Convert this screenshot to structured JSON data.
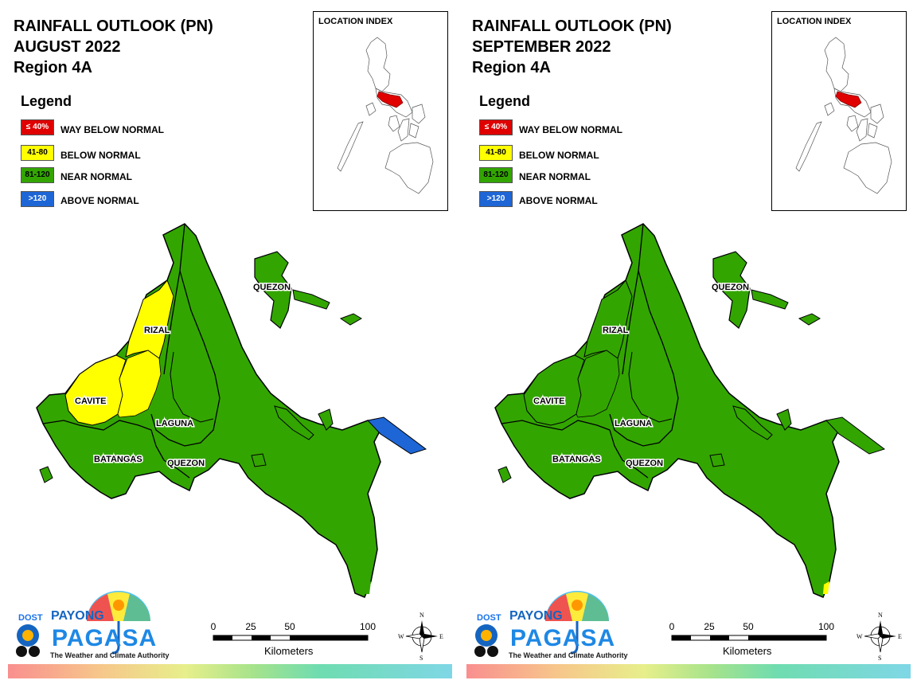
{
  "colors": {
    "way_below": "#e00000",
    "below": "#ffff00",
    "near": "#33a500",
    "above": "#1e66d6"
  },
  "panels": [
    {
      "title_lines": [
        "RAINFALL OUTLOOK (PN)",
        "AUGUST 2022",
        "Region 4A"
      ],
      "legend": {
        "heading": "Legend",
        "items": [
          {
            "swatch": "≤ 40%",
            "label": "WAY BELOW NORMAL",
            "color": "#e00000",
            "text_color": "#ffffff"
          },
          {
            "swatch": "41-80",
            "label": "BELOW NORMAL",
            "color": "#ffff00",
            "text_color": "#000000"
          },
          {
            "swatch": "81-120",
            "label": "NEAR NORMAL",
            "color": "#33a500",
            "text_color": "#000000"
          },
          {
            "swatch": ">120",
            "label": "ABOVE NORMAL",
            "color": "#1e66d6",
            "text_color": "#ffffff"
          }
        ]
      },
      "location_index": "LOCATION INDEX",
      "provinces": {
        "quezon_north": "QUEZON",
        "rizal": "RIZAL",
        "cavite": "CAVITE",
        "laguna": "LAGUNA",
        "batangas": "BATANGAS",
        "quezon_south": "QUEZON"
      },
      "outlook": {
        "rizal": "below",
        "cavite": "below",
        "laguna_west": "below",
        "quezon_tip": "above",
        "default": "near"
      },
      "scale": {
        "ticks": [
          "0",
          "25",
          "50",
          "100"
        ],
        "unit": "Kilometers"
      },
      "logo": {
        "dost": "DOST",
        "payong": "PAYONG",
        "pagasa": "PAGASA",
        "tagline": "The Weather and Climate Authority"
      },
      "compass": {
        "n": "N",
        "s": "S",
        "e": "E",
        "w": "W"
      }
    },
    {
      "title_lines": [
        "RAINFALL OUTLOOK (PN)",
        "SEPTEMBER 2022",
        "Region 4A"
      ],
      "legend": {
        "heading": "Legend",
        "items": [
          {
            "swatch": "≤ 40%",
            "label": "WAY BELOW NORMAL",
            "color": "#e00000",
            "text_color": "#ffffff"
          },
          {
            "swatch": "41-80",
            "label": "BELOW NORMAL",
            "color": "#ffff00",
            "text_color": "#000000"
          },
          {
            "swatch": "81-120",
            "label": "NEAR NORMAL",
            "color": "#33a500",
            "text_color": "#000000"
          },
          {
            "swatch": ">120",
            "label": "ABOVE NORMAL",
            "color": "#1e66d6",
            "text_color": "#ffffff"
          }
        ]
      },
      "location_index": "LOCATION INDEX",
      "provinces": {
        "quezon_north": "QUEZON",
        "rizal": "RIZAL",
        "cavite": "CAVITE",
        "laguna": "LAGUNA",
        "batangas": "BATANGAS",
        "quezon_south": "QUEZON"
      },
      "outlook": {
        "rizal": "near",
        "cavite": "near",
        "laguna_west": "near",
        "quezon_tip": "near",
        "southern_tip": "below",
        "default": "near"
      },
      "scale": {
        "ticks": [
          "0",
          "25",
          "50",
          "100"
        ],
        "unit": "Kilometers"
      },
      "logo": {
        "dost": "DOST",
        "payong": "PAYONG",
        "pagasa": "PAGASA",
        "tagline": "The Weather and Climate Authority"
      },
      "compass": {
        "n": "N",
        "s": "S",
        "e": "E",
        "w": "W"
      }
    }
  ]
}
